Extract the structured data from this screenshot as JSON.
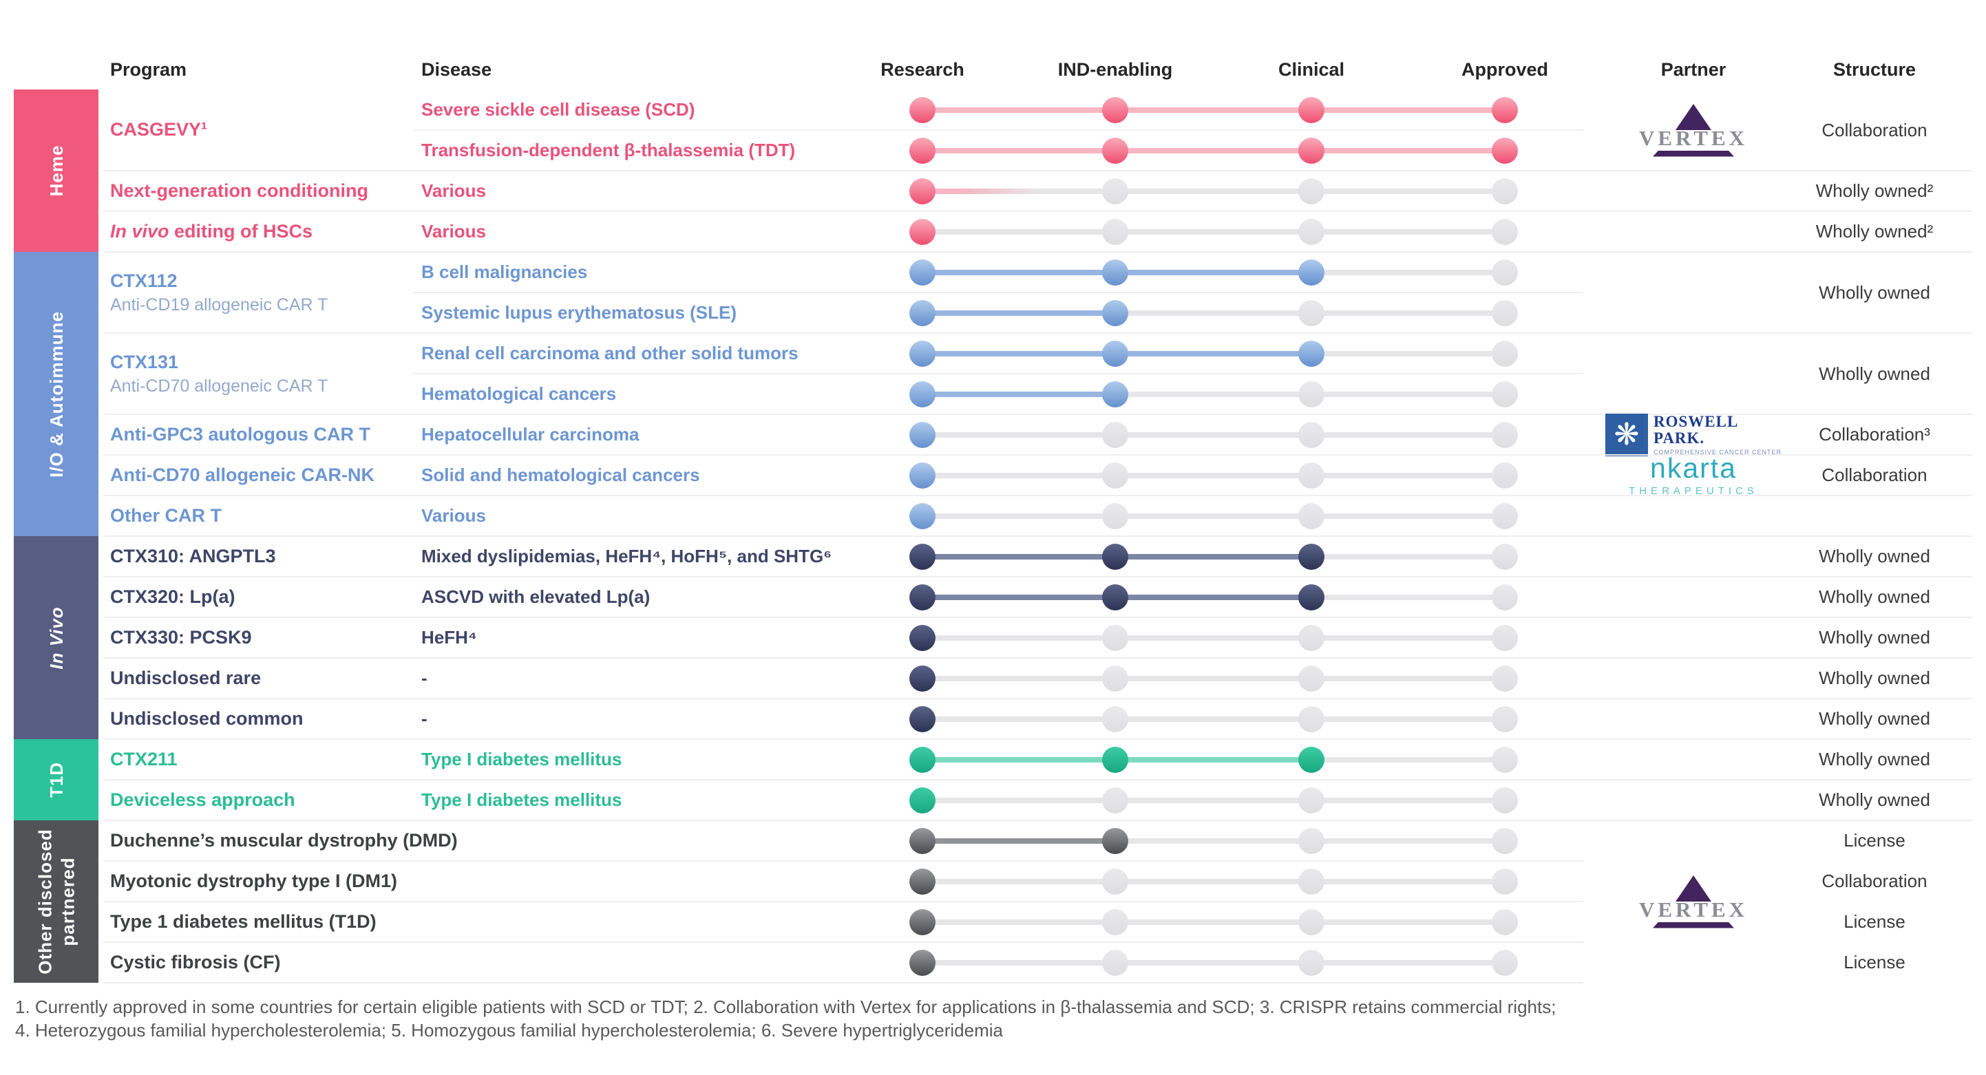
{
  "header": {
    "program": "Program",
    "disease": "Disease",
    "stages": [
      "Research",
      "IND-enabling",
      "Clinical",
      "Approved"
    ],
    "partner": "Partner",
    "structure": "Structure"
  },
  "themes": {
    "pink": {
      "dot_top": "#FBAABA",
      "dot_bottom": "#EF4E70",
      "line": "#F6B6C3",
      "text": "#E8537B",
      "band": "#F0597C"
    },
    "blue": {
      "dot_top": "#AECBEC",
      "dot_bottom": "#6590CE",
      "line": "#98B5E2",
      "text": "#6D96D3",
      "sub": "#93A9CC",
      "band": "#7396D5"
    },
    "navy": {
      "dot_top": "#5A6388",
      "dot_bottom": "#2C3354",
      "line": "#7B85A5",
      "text": "#3F4566",
      "band": "#585D82"
    },
    "green": {
      "dot_top": "#3FCCA5",
      "dot_bottom": "#17A87F",
      "line": "#7CDAC0",
      "text": "#2BBD96",
      "band": "#2BC39B"
    },
    "dark": {
      "dot_top": "#989A9D",
      "dot_bottom": "#484A4D",
      "line": "#929597",
      "text": "#3E4041",
      "band": "#515456"
    },
    "gray": {
      "dot_top": "#EAEAEC",
      "dot_bottom": "#DEDEE0",
      "line": "#E6E6E8"
    }
  },
  "sections": [
    {
      "label": "Heme",
      "theme": "pink",
      "rows": 4
    },
    {
      "label": "I/O & Autoimmune",
      "theme": "blue",
      "rows": 7
    },
    {
      "label": "In Vivo",
      "theme": "navy",
      "rows": 5,
      "italic": true
    },
    {
      "label_lines": [
        "Other disclosed",
        "partnered"
      ],
      "label": "Other disclosed partnered",
      "theme": "dark",
      "rows": 4
    },
    {
      "label": "T1D",
      "theme": "green",
      "rows": 2
    }
  ],
  "section_order": [
    0,
    1,
    2,
    4,
    3
  ],
  "rows": [
    {
      "sep": "none",
      "theme": "pink",
      "program": "CASGEVY¹",
      "program_rowspan": 2,
      "disease": "Severe sickle cell disease (SCD)",
      "filled": 4,
      "partner": "vertex",
      "partner_rowspan": 2,
      "structure": "Collaboration",
      "structure_rowspan": 2
    },
    {
      "sep": "merged",
      "theme": "pink",
      "disease": "Transfusion-dependent β-thalassemia (TDT)",
      "filled": 4
    },
    {
      "sep": "full",
      "theme": "pink",
      "program": "Next-generation conditioning",
      "disease": "Various",
      "filled": 1,
      "fade": true,
      "structure": "Wholly owned²"
    },
    {
      "sep": "full",
      "theme": "pink",
      "program_parts": [
        {
          "text": "In vivo",
          "italic": true
        },
        {
          "text": " editing of HSCs"
        }
      ],
      "disease": "Various",
      "filled": 1,
      "structure": "Wholly owned²"
    },
    {
      "sep": "full",
      "theme": "blue",
      "program": "CTX112",
      "program_sub": "Anti-CD19 allogeneic CAR T",
      "program_rowspan": 2,
      "disease": "B cell malignancies",
      "filled": 3,
      "structure": "Wholly owned",
      "structure_rowspan": 2
    },
    {
      "sep": "merged",
      "theme": "blue",
      "disease": "Systemic lupus erythematosus (SLE)",
      "filled": 2
    },
    {
      "sep": "full",
      "theme": "blue",
      "program": "CTX131",
      "program_sub": "Anti-CD70 allogeneic CAR T",
      "program_rowspan": 2,
      "disease": "Renal cell carcinoma and other solid tumors",
      "filled": 3,
      "structure": "Wholly owned",
      "structure_rowspan": 2
    },
    {
      "sep": "merged",
      "theme": "blue",
      "disease": "Hematological cancers",
      "filled": 2
    },
    {
      "sep": "full",
      "theme": "blue",
      "program": "Anti-GPC3 autologous CAR T",
      "disease": "Hepatocellular carcinoma",
      "filled": 1,
      "partner": "roswell",
      "structure": "Collaboration³"
    },
    {
      "sep": "full",
      "theme": "blue",
      "program": "Anti-CD70 allogeneic CAR-NK",
      "disease": "Solid and hematological cancers",
      "filled": 1,
      "partner": "nkarta",
      "structure": "Collaboration"
    },
    {
      "sep": "full",
      "theme": "blue",
      "program": "Other CAR T",
      "disease": "Various",
      "filled": 1
    },
    {
      "sep": "full",
      "theme": "navy",
      "program": "CTX310: ANGPTL3",
      "disease": "Mixed dyslipidemias, HeFH⁴, HoFH⁵, and SHTG⁶",
      "filled": 3,
      "structure": "Wholly owned"
    },
    {
      "sep": "full",
      "theme": "navy",
      "program": "CTX320: Lp(a)",
      "disease": "ASCVD with elevated Lp(a)",
      "filled": 3,
      "structure": "Wholly owned"
    },
    {
      "sep": "full",
      "theme": "navy",
      "program": "CTX330: PCSK9",
      "disease": "HeFH⁴",
      "filled": 1,
      "structure": "Wholly owned"
    },
    {
      "sep": "full",
      "theme": "navy",
      "program": "Undisclosed rare",
      "disease": "-",
      "filled": 1,
      "structure": "Wholly owned"
    },
    {
      "sep": "full",
      "theme": "navy",
      "program": "Undisclosed common",
      "disease": "-",
      "filled": 1,
      "structure": "Wholly owned"
    },
    {
      "sep": "full",
      "theme": "green",
      "program": "CTX211",
      "disease": "Type I diabetes mellitus",
      "filled": 3,
      "structure": "Wholly owned"
    },
    {
      "sep": "full",
      "theme": "green",
      "program": "Deviceless approach",
      "disease": "Type I diabetes mellitus",
      "filled": 1,
      "structure": "Wholly owned"
    },
    {
      "sep": "full",
      "theme": "dark",
      "program": "Duchenne’s muscular dystrophy (DMD)",
      "filled": 2,
      "partner": "vertex",
      "partner_rowspan": 4,
      "structure": "License"
    },
    {
      "sep": "short",
      "theme": "dark",
      "program": "Myotonic dystrophy type I (DM1)",
      "filled": 1,
      "structure": "Collaboration"
    },
    {
      "sep": "short",
      "theme": "dark",
      "program": "Type 1 diabetes mellitus (T1D)",
      "filled": 1,
      "structure": "License"
    },
    {
      "sep": "short",
      "theme": "dark",
      "program": "Cystic fibrosis (CF)",
      "filled": 1,
      "structure": "License"
    }
  ],
  "partners": {
    "vertex": {
      "name": "VERTEX"
    },
    "roswell": {
      "line1": "ROSWELL",
      "line2": "PARK.",
      "caption": "COMPREHENSIVE CANCER CENTER",
      "emblem": "❋"
    },
    "nkarta": {
      "name": "nkarta",
      "caption": "THERAPEUTICS"
    }
  },
  "footnotes": [
    "1. Currently approved in some countries for certain eligible patients with SCD or TDT;  2. Collaboration with Vertex for applications in β-thalassemia and SCD;  3. CRISPR retains commercial rights;",
    "4. Heterozygous familial hypercholesterolemia;  5. Homozygous familial hypercholesterolemia;  6. Severe hypertriglyceridemia"
  ]
}
